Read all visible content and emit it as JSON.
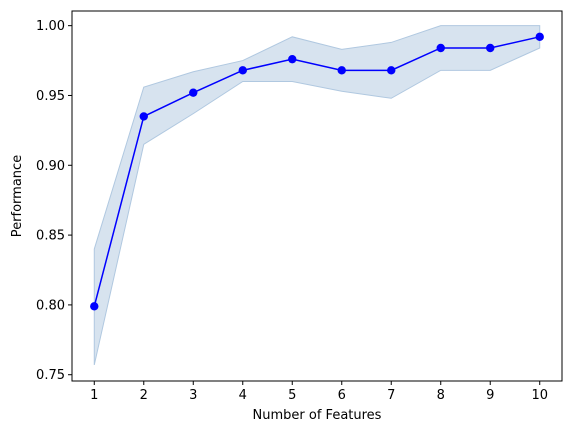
{
  "chart_data": {
    "type": "line",
    "title": "",
    "xlabel": "Number of Features",
    "ylabel": "Performance",
    "x": [
      1,
      2,
      3,
      4,
      5,
      6,
      7,
      8,
      9,
      10
    ],
    "xticks": [
      "1",
      "2",
      "3",
      "4",
      "5",
      "6",
      "7",
      "8",
      "9",
      "10"
    ],
    "yticks": [
      "0.75",
      "0.80",
      "0.85",
      "0.90",
      "0.95",
      "1.00"
    ],
    "ytick_values": [
      0.75,
      0.8,
      0.85,
      0.9,
      0.95,
      1.0
    ],
    "xlim": [
      0.55,
      10.45
    ],
    "ylim": [
      0.7455,
      1.0105
    ],
    "grid": false,
    "series": [
      {
        "values": [
          0.799,
          0.935,
          0.952,
          0.968,
          0.976,
          0.968,
          0.968,
          0.984,
          0.984,
          0.992
        ],
        "band_upper": [
          0.84,
          0.956,
          0.967,
          0.975,
          0.992,
          0.983,
          0.988,
          1.0,
          1.0,
          1.0
        ],
        "band_lower": [
          0.757,
          0.915,
          0.937,
          0.96,
          0.96,
          0.953,
          0.948,
          0.968,
          0.968,
          0.984
        ],
        "line_color": "#0000ff",
        "marker_color": "#0000ff",
        "band_color": "#c9d9ea",
        "band_edge_color": "#b0c8e0"
      }
    ]
  }
}
